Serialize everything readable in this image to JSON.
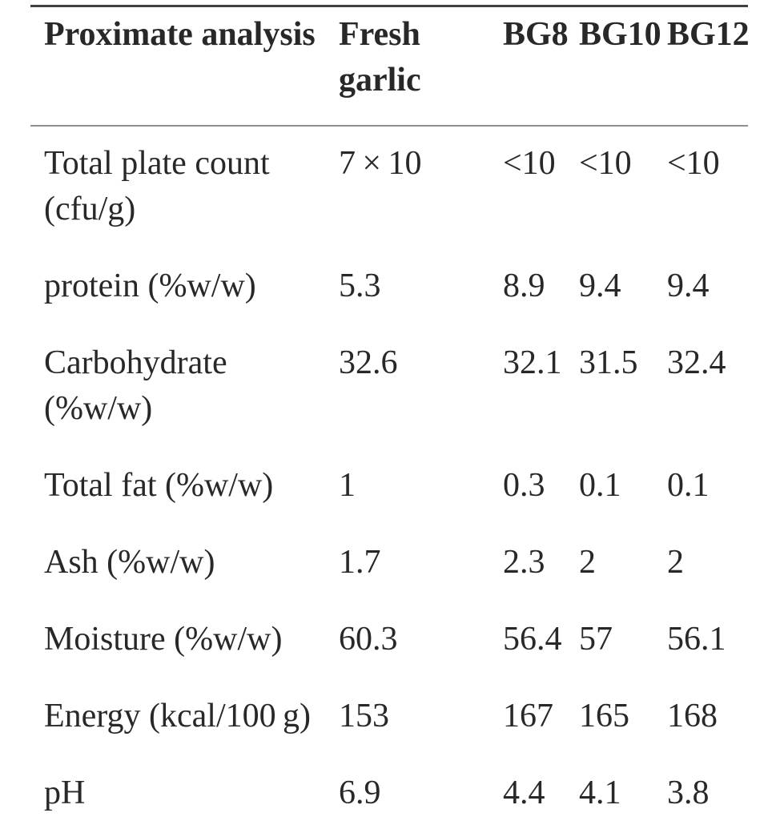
{
  "table": {
    "header": {
      "col1": "Proximate analysis",
      "col2": "Fresh garlic",
      "col3": "BG8",
      "col4": "BG10",
      "col5": "BG12"
    },
    "rows": [
      {
        "label": "Total plate count (cfu/g)",
        "values": [
          "7 × 10",
          "<10",
          "<10",
          "<10"
        ]
      },
      {
        "label": "protein (%w/w)",
        "values": [
          "5.3",
          "8.9",
          "9.4",
          "9.4"
        ]
      },
      {
        "label": "Carbohydrate (%w/w)",
        "values": [
          "32.6",
          "32.1",
          "31.5",
          "32.4"
        ]
      },
      {
        "label": "Total fat (%w/w)",
        "values": [
          "1",
          "0.3",
          "0.1",
          "0.1"
        ]
      },
      {
        "label": "Ash (%w/w)",
        "values": [
          "1.7",
          "2.3",
          "2",
          "2"
        ]
      },
      {
        "label": "Moisture (%w/w)",
        "values": [
          "60.3",
          "56.4",
          "57",
          "56.1"
        ]
      },
      {
        "label": "Energy (kcal/100 g)",
        "values": [
          "153",
          "167",
          "165",
          "168"
        ]
      },
      {
        "label": "pH",
        "values": [
          "6.9",
          "4.4",
          "4.1",
          "3.8"
        ]
      }
    ],
    "colors": {
      "text": "#282828",
      "top_rule": "#414141",
      "header_rule": "#8f8f8f",
      "background": "#ffffff"
    }
  },
  "chart_data": {
    "type": "table",
    "title": "Proximate analysis",
    "columns": [
      "Proximate analysis",
      "Fresh garlic",
      "BG8",
      "BG10",
      "BG12"
    ],
    "rows": [
      [
        "Total plate count (cfu/g)",
        "7×10",
        "<10",
        "<10",
        "<10"
      ],
      [
        "protein (%w/w)",
        5.3,
        8.9,
        9.4,
        9.4
      ],
      [
        "Carbohydrate (%w/w)",
        32.6,
        32.1,
        31.5,
        32.4
      ],
      [
        "Total fat (%w/w)",
        1,
        0.3,
        0.1,
        0.1
      ],
      [
        "Ash (%w/w)",
        1.7,
        2.3,
        2,
        2
      ],
      [
        "Moisture (%w/w)",
        60.3,
        56.4,
        57,
        56.1
      ],
      [
        "Energy (kcal/100 g)",
        153,
        167,
        165,
        168
      ],
      [
        "pH",
        6.9,
        4.4,
        4.1,
        3.8
      ]
    ]
  }
}
